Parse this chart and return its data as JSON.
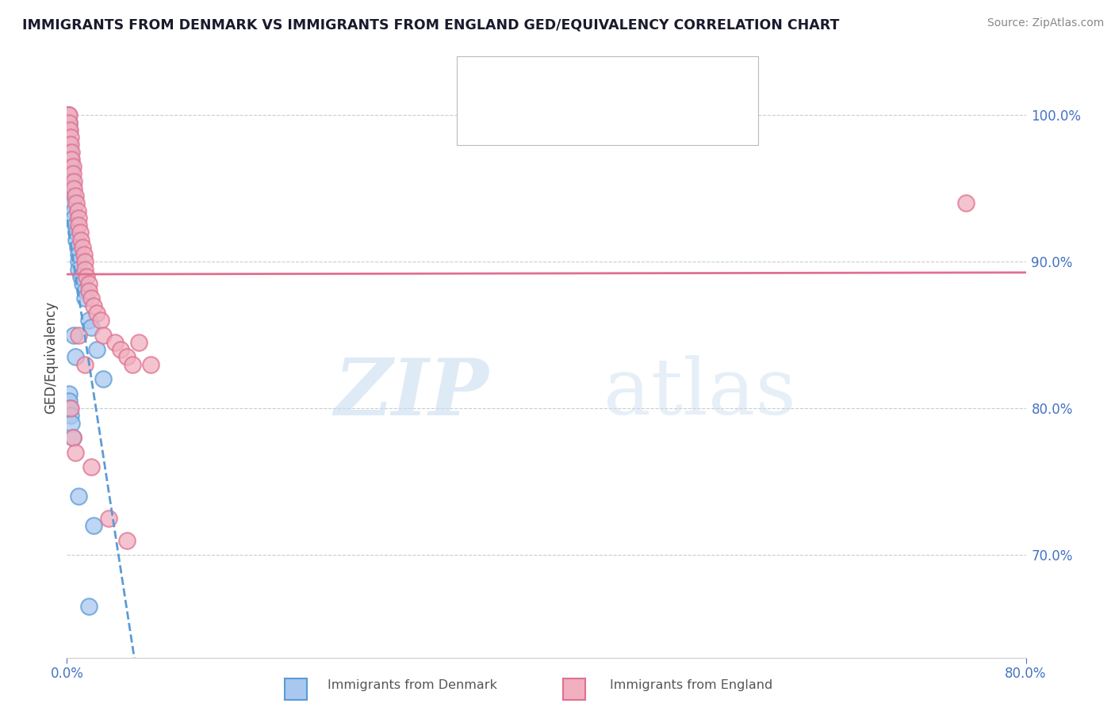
{
  "title": "IMMIGRANTS FROM DENMARK VS IMMIGRANTS FROM ENGLAND GED/EQUIVALENCY CORRELATION CHART",
  "source": "Source: ZipAtlas.com",
  "ylabel": "GED/Equivalency",
  "color_denmark": "#a8c8f0",
  "color_england": "#f0b0c0",
  "edge_denmark": "#5b9bd5",
  "edge_england": "#e07090",
  "trend_dk_color": "#5b9bd5",
  "trend_en_color": "#e07090",
  "xlim": [
    0,
    80
  ],
  "ylim": [
    63,
    104
  ],
  "yticks": [
    70,
    80,
    90,
    100
  ],
  "ytick_labels": [
    "70.0%",
    "80.0%",
    "90.0%",
    "100.0%"
  ],
  "denmark_x": [
    0.1,
    0.15,
    0.2,
    0.2,
    0.25,
    0.3,
    0.3,
    0.3,
    0.4,
    0.4,
    0.5,
    0.5,
    0.6,
    0.6,
    0.7,
    0.8,
    0.8,
    0.9,
    1.0,
    1.0,
    1.0,
    1.2,
    1.3,
    1.5,
    1.5,
    1.8,
    2.0,
    2.5,
    3.0,
    0.15,
    0.2,
    0.25,
    0.3,
    0.4,
    0.5,
    0.6,
    0.7,
    1.0,
    2.2,
    1.8
  ],
  "denmark_y": [
    100.0,
    99.5,
    99.0,
    98.0,
    97.5,
    97.0,
    96.5,
    96.0,
    95.5,
    95.0,
    94.5,
    94.0,
    93.5,
    93.0,
    92.5,
    92.0,
    91.5,
    91.0,
    90.5,
    90.0,
    89.5,
    89.0,
    88.5,
    88.0,
    87.5,
    86.0,
    85.5,
    84.0,
    82.0,
    81.0,
    80.5,
    80.0,
    79.5,
    79.0,
    78.0,
    85.0,
    83.5,
    74.0,
    72.0,
    66.5
  ],
  "england_x": [
    0.1,
    0.15,
    0.2,
    0.25,
    0.3,
    0.3,
    0.4,
    0.4,
    0.5,
    0.5,
    0.6,
    0.6,
    0.7,
    0.8,
    0.9,
    1.0,
    1.0,
    1.1,
    1.2,
    1.3,
    1.4,
    1.5,
    1.5,
    1.6,
    1.8,
    1.8,
    2.0,
    2.2,
    2.5,
    2.8,
    3.0,
    4.0,
    4.5,
    5.0,
    5.5,
    6.0,
    7.0,
    0.3,
    0.5,
    0.7,
    1.0,
    1.5,
    2.0,
    3.5,
    5.0,
    75.0
  ],
  "england_y": [
    100.0,
    100.0,
    99.5,
    99.0,
    98.5,
    98.0,
    97.5,
    97.0,
    96.5,
    96.0,
    95.5,
    95.0,
    94.5,
    94.0,
    93.5,
    93.0,
    92.5,
    92.0,
    91.5,
    91.0,
    90.5,
    90.0,
    89.5,
    89.0,
    88.5,
    88.0,
    87.5,
    87.0,
    86.5,
    86.0,
    85.0,
    84.5,
    84.0,
    83.5,
    83.0,
    84.5,
    83.0,
    80.0,
    78.0,
    77.0,
    85.0,
    83.0,
    76.0,
    72.5,
    71.0,
    94.0
  ]
}
